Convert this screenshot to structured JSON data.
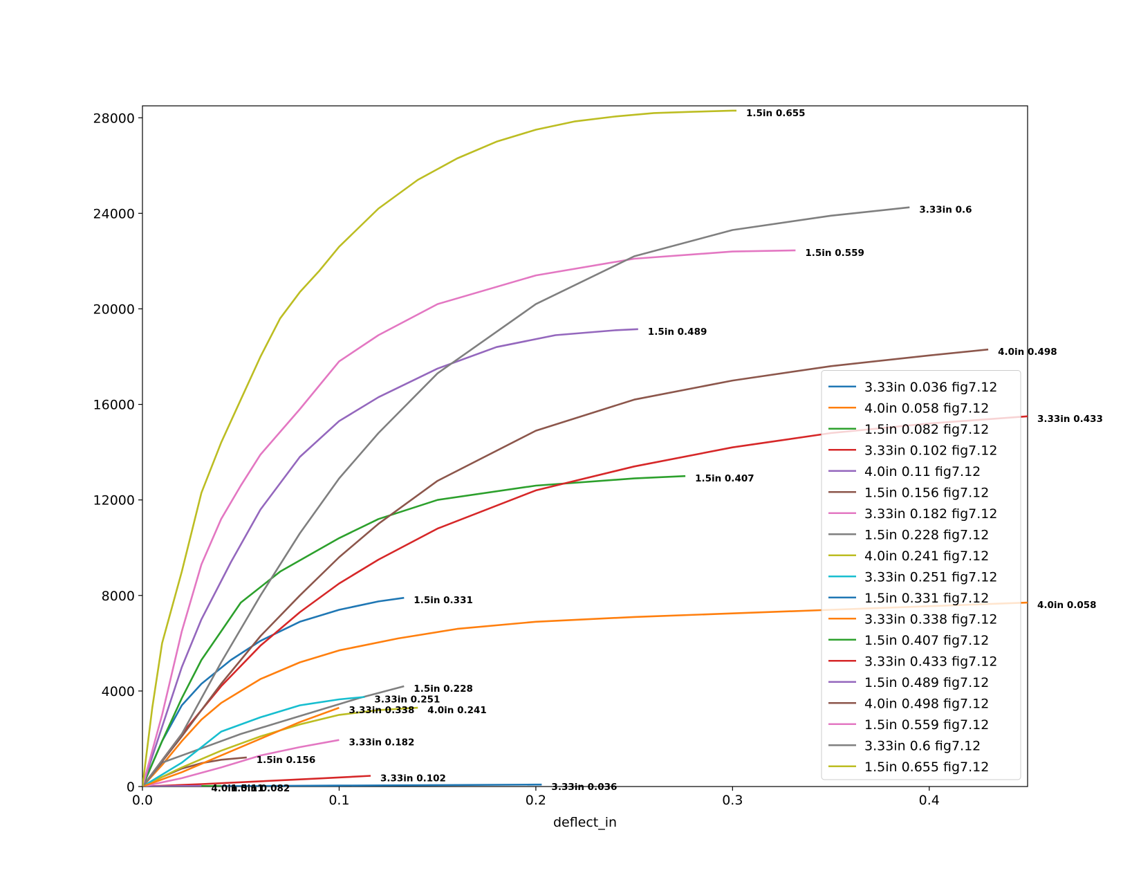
{
  "chart_data": {
    "type": "line",
    "xlabel": "deflect_in",
    "ylabel": "",
    "xlim": [
      0,
      0.45
    ],
    "ylim": [
      0,
      28500
    ],
    "xticks": [
      0.0,
      0.1,
      0.2,
      0.3,
      0.4
    ],
    "xtick_labels": [
      "0.0",
      "0.1",
      "0.2",
      "0.3",
      "0.4"
    ],
    "yticks": [
      0,
      4000,
      8000,
      12000,
      16000,
      20000,
      24000,
      28000
    ],
    "ytick_labels": [
      "0",
      "4000",
      "8000",
      "12000",
      "16000",
      "20000",
      "24000",
      "28000"
    ],
    "grid": false,
    "legend_position": "lower-right",
    "series": [
      {
        "name": "3.33in 0.036 fig7.12",
        "end_label": "3.33in 0.036",
        "color": "#1f77b4",
        "x": [
          0,
          0.05,
          0.1,
          0.15,
          0.2,
          0.203
        ],
        "y": [
          0,
          20,
          40,
          60,
          80,
          80
        ]
      },
      {
        "name": "4.0in 0.058 fig7.12",
        "end_label": "4.0in 0.058",
        "color": "#ff7f0e",
        "x": [
          0,
          0.01,
          0.02,
          0.03,
          0.04,
          0.05,
          0.06,
          0.08,
          0.1,
          0.13,
          0.16,
          0.2,
          0.25,
          0.3,
          0.35,
          0.4,
          0.45
        ],
        "y": [
          0,
          900,
          1900,
          2800,
          3500,
          4000,
          4500,
          5200,
          5700,
          6200,
          6600,
          6900,
          7100,
          7250,
          7400,
          7550,
          7700
        ]
      },
      {
        "name": "1.5in 0.082 fig7.12",
        "end_label": "1.5in 0.082",
        "color": "#2ca02c",
        "x": [
          0,
          0.01,
          0.02,
          0.03,
          0.04
        ],
        "y": [
          0,
          10,
          15,
          20,
          25
        ]
      },
      {
        "name": "3.33in 0.102 fig7.12",
        "end_label": "3.33in 0.102",
        "color": "#d62728",
        "x": [
          0,
          0.03,
          0.06,
          0.09,
          0.116
        ],
        "y": [
          0,
          100,
          220,
          340,
          450
        ]
      },
      {
        "name": "4.0in 0.11 fig7.12",
        "end_label": "4.0in 0.11",
        "color": "#9467bd",
        "x": [
          0,
          0.01,
          0.02,
          0.03
        ],
        "y": [
          0,
          10,
          20,
          30
        ]
      },
      {
        "name": "1.5in 0.156 fig7.12",
        "end_label": "1.5in 0.156",
        "color": "#8c564b",
        "x": [
          0,
          0.01,
          0.02,
          0.03,
          0.04,
          0.053
        ],
        "y": [
          0,
          400,
          750,
          980,
          1120,
          1220
        ]
      },
      {
        "name": "3.33in 0.182 fig7.12",
        "end_label": "3.33in 0.182",
        "color": "#e377c2",
        "x": [
          0,
          0.02,
          0.04,
          0.06,
          0.08,
          0.1
        ],
        "y": [
          0,
          350,
          800,
          1300,
          1650,
          1950
        ]
      },
      {
        "name": "1.5in 0.228 fig7.12",
        "end_label": "1.5in 0.228",
        "color": "#7f7f7f",
        "x": [
          0,
          0.01,
          0.03,
          0.05,
          0.07,
          0.09,
          0.11,
          0.133
        ],
        "y": [
          0,
          1000,
          1600,
          2200,
          2700,
          3200,
          3700,
          4200
        ]
      },
      {
        "name": "4.0in 0.241 fig7.12",
        "end_label": "4.0in 0.241",
        "color": "#bcbd22",
        "x": [
          0,
          0.02,
          0.04,
          0.06,
          0.08,
          0.1,
          0.12,
          0.14
        ],
        "y": [
          0,
          800,
          1500,
          2100,
          2600,
          3000,
          3200,
          3300
        ]
      },
      {
        "name": "3.33in 0.251 fig7.12",
        "end_label": "3.33in 0.251",
        "color": "#17becf",
        "x": [
          0,
          0.02,
          0.04,
          0.06,
          0.08,
          0.1,
          0.113
        ],
        "y": [
          0,
          1000,
          2300,
          2900,
          3400,
          3650,
          3750
        ]
      },
      {
        "name": "1.5in 0.331 fig7.12",
        "end_label": "1.5in 0.331",
        "color": "#1f77b4",
        "x": [
          0,
          0.01,
          0.02,
          0.03,
          0.045,
          0.06,
          0.08,
          0.1,
          0.12,
          0.133
        ],
        "y": [
          0,
          1900,
          3400,
          4300,
          5300,
          6100,
          6900,
          7400,
          7750,
          7900
        ]
      },
      {
        "name": "3.33in 0.338 fig7.12",
        "end_label": "3.33in 0.338",
        "color": "#ff7f0e",
        "x": [
          0,
          0.02,
          0.04,
          0.06,
          0.08,
          0.1
        ],
        "y": [
          0,
          600,
          1300,
          2000,
          2700,
          3300
        ]
      },
      {
        "name": "1.5in 0.407 fig7.12",
        "end_label": "1.5in 0.407",
        "color": "#2ca02c",
        "x": [
          0,
          0.01,
          0.02,
          0.03,
          0.04,
          0.05,
          0.07,
          0.1,
          0.12,
          0.15,
          0.2,
          0.25,
          0.276
        ],
        "y": [
          0,
          1900,
          3700,
          5300,
          6500,
          7700,
          9000,
          10400,
          11200,
          12000,
          12600,
          12900,
          13000
        ]
      },
      {
        "name": "3.33in 0.433 fig7.12",
        "end_label": "3.33in 0.433",
        "color": "#d62728",
        "x": [
          0,
          0.02,
          0.04,
          0.06,
          0.08,
          0.1,
          0.12,
          0.15,
          0.2,
          0.25,
          0.3,
          0.35,
          0.4,
          0.45
        ],
        "y": [
          0,
          2200,
          4200,
          5900,
          7300,
          8500,
          9500,
          10800,
          12400,
          13400,
          14200,
          14800,
          15200,
          15500
        ]
      },
      {
        "name": "1.5in 0.489 fig7.12",
        "end_label": "1.5in 0.489",
        "color": "#9467bd",
        "x": [
          0,
          0.01,
          0.02,
          0.03,
          0.045,
          0.06,
          0.08,
          0.1,
          0.12,
          0.15,
          0.18,
          0.21,
          0.24,
          0.252
        ],
        "y": [
          0,
          2500,
          5000,
          7000,
          9400,
          11600,
          13800,
          15300,
          16300,
          17500,
          18400,
          18900,
          19100,
          19150
        ]
      },
      {
        "name": "4.0in 0.498 fig7.12",
        "end_label": "4.0in 0.498",
        "color": "#8c564b",
        "x": [
          0,
          0.02,
          0.04,
          0.06,
          0.08,
          0.1,
          0.12,
          0.15,
          0.2,
          0.25,
          0.3,
          0.35,
          0.4,
          0.43
        ],
        "y": [
          0,
          2100,
          4300,
          6300,
          8000,
          9600,
          11000,
          12800,
          14900,
          16200,
          17000,
          17600,
          18050,
          18300
        ]
      },
      {
        "name": "1.5in 0.559 fig7.12",
        "end_label": "1.5in 0.559",
        "color": "#e377c2",
        "x": [
          0,
          0.01,
          0.02,
          0.03,
          0.04,
          0.05,
          0.06,
          0.08,
          0.1,
          0.12,
          0.15,
          0.2,
          0.25,
          0.3,
          0.332
        ],
        "y": [
          0,
          3000,
          6500,
          9300,
          11200,
          12600,
          13900,
          15800,
          17800,
          18900,
          20200,
          21400,
          22100,
          22400,
          22450
        ]
      },
      {
        "name": "3.33in 0.6 fig7.12",
        "end_label": "3.33in 0.6",
        "color": "#7f7f7f",
        "x": [
          0,
          0.02,
          0.04,
          0.06,
          0.08,
          0.1,
          0.12,
          0.15,
          0.2,
          0.25,
          0.3,
          0.35,
          0.39
        ],
        "y": [
          0,
          2200,
          5200,
          8000,
          10600,
          12900,
          14800,
          17300,
          20200,
          22200,
          23300,
          23900,
          24250
        ]
      },
      {
        "name": "1.5in 0.655 fig7.12",
        "end_label": "1.5in 0.655",
        "color": "#bcbd22",
        "x": [
          0,
          0.005,
          0.01,
          0.02,
          0.03,
          0.04,
          0.05,
          0.06,
          0.07,
          0.08,
          0.09,
          0.1,
          0.12,
          0.14,
          0.16,
          0.18,
          0.2,
          0.22,
          0.24,
          0.26,
          0.28,
          0.3,
          0.302
        ],
        "y": [
          0,
          3300,
          6000,
          9000,
          12300,
          14400,
          16200,
          18000,
          19600,
          20700,
          21600,
          22600,
          24200,
          25400,
          26300,
          27000,
          27500,
          27850,
          28050,
          28200,
          28250,
          28300,
          28300
        ]
      }
    ]
  }
}
